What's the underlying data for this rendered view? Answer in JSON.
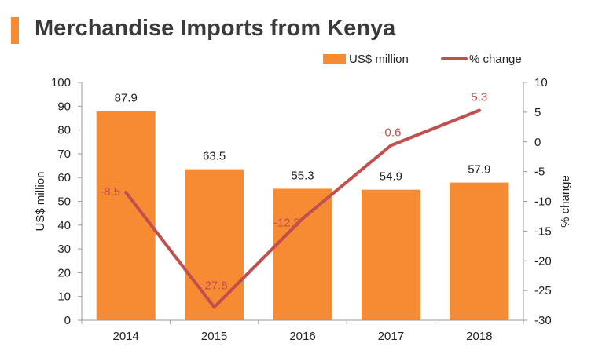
{
  "colors": {
    "bar": "#f68b33",
    "line": "#c0504d",
    "title_accent": "#f68b33",
    "axis": "#9a9a9a"
  },
  "chart_data": {
    "type": "bar",
    "title": "Merchandise Imports from Kenya",
    "categories": [
      "2014",
      "2015",
      "2016",
      "2017",
      "2018"
    ],
    "series": [
      {
        "name": "US$ million",
        "type": "bar",
        "axis": "left",
        "values": [
          87.9,
          63.5,
          55.3,
          54.9,
          57.9
        ]
      },
      {
        "name": "% change",
        "type": "line",
        "axis": "right",
        "values": [
          -8.5,
          -27.8,
          -12.9,
          -0.6,
          5.3
        ]
      }
    ],
    "ylabel": "US$ million",
    "ylim": [
      0,
      100
    ],
    "yticks": [
      "0",
      "10",
      "20",
      "30",
      "40",
      "50",
      "60",
      "70",
      "80",
      "90",
      "100"
    ],
    "y2label": "% change",
    "y2lim": [
      -30,
      10
    ],
    "y2ticks": [
      "-30",
      "-25",
      "-20",
      "-15",
      "-10",
      "-5",
      "0",
      "5",
      "10"
    ],
    "bar_labels": [
      "87.9",
      "63.5",
      "55.3",
      "54.9",
      "57.9"
    ],
    "line_labels": [
      "-8.5",
      "-27.8",
      "-12.9",
      "-0.6",
      "5.3"
    ],
    "legend_position": "top-right",
    "grid": false
  }
}
